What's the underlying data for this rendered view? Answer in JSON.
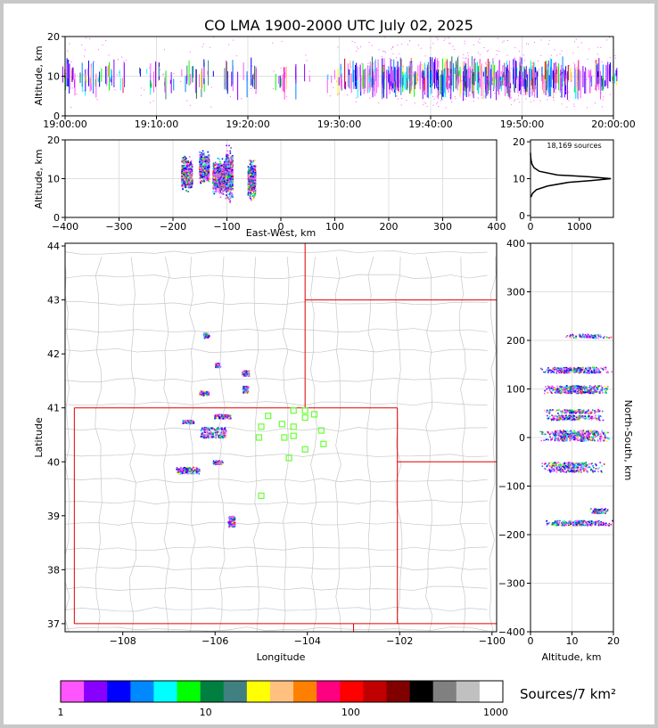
{
  "chart_data": [
    {
      "id": "time-altitude",
      "type": "scatter",
      "title": "CO LMA 1900-2000 UTC July 02, 2025",
      "xlabel": "",
      "ylabel": "Altitude, km",
      "xticks": [
        "19:00:00",
        "19:10:00",
        "19:20:00",
        "19:30:00",
        "19:40:00",
        "19:50:00",
        "20:00:00"
      ],
      "yticks": [
        "0",
        "10",
        "20"
      ],
      "xlim_minutes": [
        0,
        60
      ],
      "ylim": [
        0,
        20
      ],
      "activity_minutes": [
        {
          "t": 0.4,
          "n": 3
        },
        {
          "t": 2.5,
          "n": 3
        },
        {
          "t": 4.0,
          "n": 2
        },
        {
          "t": 5.8,
          "n": 2
        },
        {
          "t": 9.0,
          "n": 2
        },
        {
          "t": 11.0,
          "n": 2
        },
        {
          "t": 13.5,
          "n": 2
        },
        {
          "t": 15.5,
          "n": 2
        },
        {
          "t": 18.0,
          "n": 2
        },
        {
          "t": 20.0,
          "n": 2
        },
        {
          "t": 23.5,
          "n": 2
        },
        {
          "t": 26.0,
          "n": 1
        },
        {
          "t": 29.5,
          "n": 2
        },
        {
          "t": 31.0,
          "n": 3
        },
        {
          "t": 32.5,
          "n": 4
        },
        {
          "t": 34.0,
          "n": 5
        },
        {
          "t": 35.5,
          "n": 6
        },
        {
          "t": 37.0,
          "n": 6
        },
        {
          "t": 38.5,
          "n": 6
        },
        {
          "t": 40.0,
          "n": 6
        },
        {
          "t": 41.5,
          "n": 7
        },
        {
          "t": 43.0,
          "n": 7
        },
        {
          "t": 44.5,
          "n": 7
        },
        {
          "t": 46.0,
          "n": 7
        },
        {
          "t": 47.5,
          "n": 6
        },
        {
          "t": 49.0,
          "n": 6
        },
        {
          "t": 50.5,
          "n": 6
        },
        {
          "t": 52.0,
          "n": 5
        },
        {
          "t": 53.5,
          "n": 5
        },
        {
          "t": 55.0,
          "n": 4
        },
        {
          "t": 56.5,
          "n": 4
        },
        {
          "t": 58.0,
          "n": 4
        },
        {
          "t": 59.5,
          "n": 3
        }
      ]
    },
    {
      "id": "eastwest-altitude",
      "type": "scatter",
      "xlabel": "East-West, km",
      "ylabel": "Altitude, km",
      "xticks": [
        -400,
        -300,
        -200,
        -100,
        0,
        100,
        200,
        300,
        400
      ],
      "yticks": [
        0,
        10,
        20
      ],
      "xlim": [
        -400,
        400
      ],
      "ylim": [
        0,
        20
      ],
      "clusters": [
        {
          "x": -175,
          "w": 20,
          "zmin": 6,
          "zmax": 17,
          "d": 5
        },
        {
          "x": -143,
          "w": 18,
          "zmin": 8,
          "zmax": 18,
          "d": 6
        },
        {
          "x": -115,
          "w": 24,
          "zmin": 5,
          "zmax": 16,
          "d": 8
        },
        {
          "x": -97,
          "w": 14,
          "zmin": 3,
          "zmax": 19,
          "d": 7
        },
        {
          "x": -55,
          "w": 14,
          "zmin": 4,
          "zmax": 16,
          "d": 6
        }
      ]
    },
    {
      "id": "source-histogram",
      "type": "line",
      "annotation": "18,169 sources",
      "xticks": [
        0,
        1000
      ],
      "yticks": [
        0,
        10,
        20
      ],
      "xlim": [
        0,
        1700
      ],
      "ylim": [
        -0.5,
        20.5
      ],
      "profile": [
        {
          "z": 5,
          "n": 10
        },
        {
          "z": 6,
          "n": 40
        },
        {
          "z": 7,
          "n": 120
        },
        {
          "z": 8,
          "n": 350
        },
        {
          "z": 9,
          "n": 780
        },
        {
          "z": 9.5,
          "n": 1250
        },
        {
          "z": 10,
          "n": 1650
        },
        {
          "z": 10.5,
          "n": 1200
        },
        {
          "z": 11,
          "n": 550
        },
        {
          "z": 12,
          "n": 180
        },
        {
          "z": 13,
          "n": 70
        },
        {
          "z": 14,
          "n": 30
        },
        {
          "z": 15,
          "n": 12
        },
        {
          "z": 16,
          "n": 4
        },
        {
          "z": 17,
          "n": 0
        }
      ]
    },
    {
      "id": "plan-view",
      "type": "scatter",
      "xlabel": "Longitude",
      "ylabel": "Latitude",
      "xticks": [
        "−108",
        "−106",
        "−104",
        "−102",
        "−100"
      ],
      "yticks": [
        "37",
        "38",
        "39",
        "40",
        "41",
        "42",
        "43",
        "44"
      ],
      "xlim": [
        -109.25,
        -99.9
      ],
      "ylim": [
        36.85,
        44.05
      ],
      "storms": [
        {
          "lon": -106.2,
          "lat": 42.35,
          "w": 0.12,
          "h": 0.1,
          "d": 2
        },
        {
          "lon": -105.95,
          "lat": 41.8,
          "w": 0.12,
          "h": 0.08,
          "d": 2
        },
        {
          "lon": -105.35,
          "lat": 41.65,
          "w": 0.15,
          "h": 0.1,
          "d": 3
        },
        {
          "lon": -106.25,
          "lat": 41.28,
          "w": 0.2,
          "h": 0.08,
          "d": 3
        },
        {
          "lon": -105.35,
          "lat": 41.35,
          "w": 0.12,
          "h": 0.12,
          "d": 3
        },
        {
          "lon": -105.85,
          "lat": 40.85,
          "w": 0.35,
          "h": 0.08,
          "d": 4
        },
        {
          "lon": -106.6,
          "lat": 40.75,
          "w": 0.25,
          "h": 0.06,
          "d": 3
        },
        {
          "lon": -106.05,
          "lat": 40.55,
          "w": 0.55,
          "h": 0.2,
          "d": 8
        },
        {
          "lon": -106.6,
          "lat": 39.85,
          "w": 0.5,
          "h": 0.12,
          "d": 6
        },
        {
          "lon": -105.95,
          "lat": 40.0,
          "w": 0.2,
          "h": 0.08,
          "d": 3
        },
        {
          "lon": -105.65,
          "lat": 38.9,
          "w": 0.15,
          "h": 0.2,
          "d": 5
        }
      ],
      "stations": [
        {
          "lon": -104.85,
          "lat": 40.85
        },
        {
          "lon": -104.55,
          "lat": 40.7
        },
        {
          "lon": -104.3,
          "lat": 40.95
        },
        {
          "lon": -104.05,
          "lat": 40.82
        },
        {
          "lon": -104.05,
          "lat": 40.95
        },
        {
          "lon": -103.85,
          "lat": 40.88
        },
        {
          "lon": -104.3,
          "lat": 40.65
        },
        {
          "lon": -105.0,
          "lat": 40.65
        },
        {
          "lon": -105.05,
          "lat": 40.45
        },
        {
          "lon": -104.5,
          "lat": 40.45
        },
        {
          "lon": -104.3,
          "lat": 40.48
        },
        {
          "lon": -103.7,
          "lat": 40.58
        },
        {
          "lon": -103.65,
          "lat": 40.33
        },
        {
          "lon": -104.05,
          "lat": 40.23
        },
        {
          "lon": -104.4,
          "lat": 40.07
        },
        {
          "lon": -105.0,
          "lat": 39.37
        }
      ]
    },
    {
      "id": "northsouth-altitude",
      "type": "scatter",
      "xlabel": "Altitude, km",
      "ylabel": "North-South, km",
      "xticks": [
        0,
        10,
        20
      ],
      "yticks": [
        -400,
        -300,
        -200,
        -100,
        0,
        100,
        200,
        300,
        400
      ],
      "xlim": [
        0,
        20
      ],
      "ylim": [
        -400,
        400
      ],
      "bands": [
        {
          "y": 210,
          "h": 8,
          "zmin": 8,
          "zmax": 20,
          "d": 2
        },
        {
          "y": 140,
          "h": 12,
          "zmin": 2,
          "zmax": 20,
          "d": 6
        },
        {
          "y": 100,
          "h": 16,
          "zmin": 2,
          "zmax": 19,
          "d": 8
        },
        {
          "y": 55,
          "h": 8,
          "zmin": 3,
          "zmax": 18,
          "d": 3
        },
        {
          "y": 42,
          "h": 10,
          "zmin": 2,
          "zmax": 18,
          "d": 5
        },
        {
          "y": 5,
          "h": 22,
          "zmin": 2,
          "zmax": 20,
          "d": 9
        },
        {
          "y": -60,
          "h": 20,
          "zmin": 2,
          "zmax": 18,
          "d": 6
        },
        {
          "y": -150,
          "h": 10,
          "zmin": 14,
          "zmax": 19,
          "d": 2
        },
        {
          "y": -175,
          "h": 10,
          "zmin": 2,
          "zmax": 20,
          "d": 6
        }
      ]
    },
    {
      "id": "colorbar",
      "type": "heatmap",
      "label": "Sources/7 km²",
      "ticks": [
        "1",
        "10",
        "100",
        "1000"
      ],
      "colors": [
        "#ff55ff",
        "#8800ff",
        "#0000ff",
        "#0088ff",
        "#00ffff",
        "#00ff00",
        "#008040",
        "#408080",
        "#ffff00",
        "#ffc080",
        "#ff8000",
        "#ff0080",
        "#ff0000",
        "#c00000",
        "#800000",
        "#000000",
        "#808080",
        "#c0c0c0",
        "#ffffff"
      ]
    }
  ]
}
